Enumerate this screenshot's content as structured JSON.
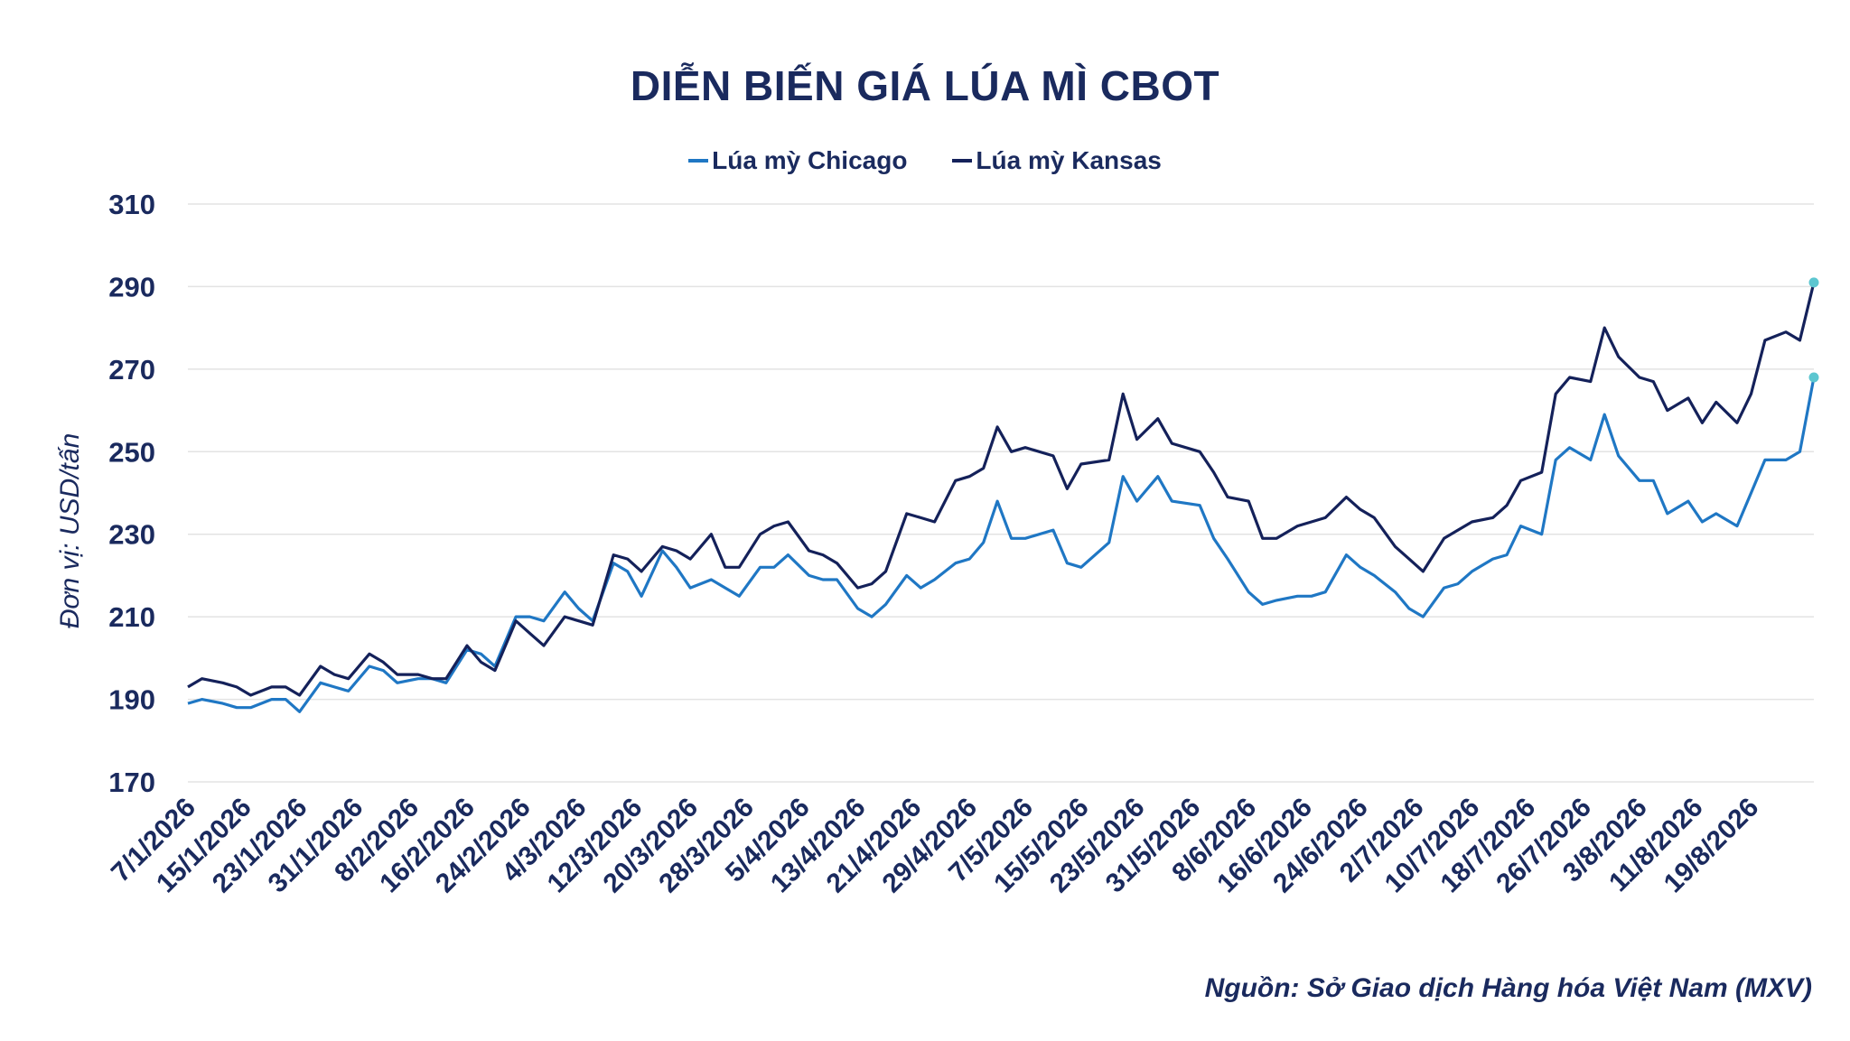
{
  "chart_data": {
    "type": "line",
    "title": "DIỄN BIẾN GIÁ LÚA MÌ CBOT",
    "ylabel": "Đơn vị: USD/tấn",
    "xlabel": "",
    "ylim": [
      170,
      310
    ],
    "yticks": [
      170,
      190,
      210,
      230,
      250,
      270,
      290,
      310
    ],
    "grid": true,
    "legend_position": "top-center",
    "xtick_labels": [
      "7/1/2026",
      "15/1/2026",
      "23/1/2026",
      "31/1/2026",
      "8/2/2026",
      "16/2/2026",
      "24/2/2026",
      "4/3/2026",
      "12/3/2026",
      "20/3/2026",
      "28/3/2026",
      "5/4/2026",
      "13/4/2026",
      "21/4/2026",
      "29/4/2026",
      "7/5/2026",
      "15/5/2026",
      "23/5/2026",
      "31/5/2026",
      "8/6/2026",
      "16/6/2026",
      "24/6/2026",
      "2/7/2026",
      "10/7/2026",
      "18/7/2026",
      "26/7/2026",
      "3/8/2026",
      "11/8/2026",
      "19/8/2026"
    ],
    "x_range": [
      "7/1/2026",
      "28/8/2026"
    ],
    "series": [
      {
        "name": "Lúa mỳ Chicago",
        "color": "#1f77c4",
        "points": [
          [
            "7/1/2026",
            189
          ],
          [
            "9/1/2026",
            190
          ],
          [
            "12/1/2026",
            189
          ],
          [
            "14/1/2026",
            188
          ],
          [
            "16/1/2026",
            188
          ],
          [
            "19/1/2026",
            190
          ],
          [
            "21/1/2026",
            190
          ],
          [
            "23/1/2026",
            187
          ],
          [
            "26/1/2026",
            194
          ],
          [
            "28/1/2026",
            193
          ],
          [
            "30/1/2026",
            192
          ],
          [
            "2/2/2026",
            198
          ],
          [
            "4/2/2026",
            197
          ],
          [
            "6/2/2026",
            194
          ],
          [
            "9/2/2026",
            195
          ],
          [
            "11/2/2026",
            195
          ],
          [
            "13/2/2026",
            194
          ],
          [
            "16/2/2026",
            202
          ],
          [
            "18/2/2026",
            201
          ],
          [
            "20/2/2026",
            198
          ],
          [
            "23/2/2026",
            210
          ],
          [
            "25/2/2026",
            210
          ],
          [
            "27/2/2026",
            209
          ],
          [
            "2/3/2026",
            216
          ],
          [
            "4/3/2026",
            212
          ],
          [
            "6/3/2026",
            209
          ],
          [
            "9/3/2026",
            223
          ],
          [
            "11/3/2026",
            221
          ],
          [
            "13/3/2026",
            215
          ],
          [
            "16/3/2026",
            226
          ],
          [
            "18/3/2026",
            222
          ],
          [
            "20/3/2026",
            217
          ],
          [
            "23/3/2026",
            219
          ],
          [
            "25/3/2026",
            217
          ],
          [
            "27/3/2026",
            215
          ],
          [
            "30/3/2026",
            222
          ],
          [
            "1/4/2026",
            222
          ],
          [
            "3/4/2026",
            225
          ],
          [
            "6/4/2026",
            220
          ],
          [
            "8/4/2026",
            219
          ],
          [
            "10/4/2026",
            219
          ],
          [
            "13/4/2026",
            212
          ],
          [
            "15/4/2026",
            210
          ],
          [
            "17/4/2026",
            213
          ],
          [
            "20/4/2026",
            220
          ],
          [
            "22/4/2026",
            217
          ],
          [
            "24/4/2026",
            219
          ],
          [
            "27/4/2026",
            223
          ],
          [
            "29/4/2026",
            224
          ],
          [
            "1/5/2026",
            228
          ],
          [
            "3/5/2026",
            238
          ],
          [
            "5/5/2026",
            229
          ],
          [
            "7/5/2026",
            229
          ],
          [
            "11/5/2026",
            231
          ],
          [
            "13/5/2026",
            223
          ],
          [
            "15/5/2026",
            222
          ],
          [
            "19/5/2026",
            228
          ],
          [
            "21/5/2026",
            244
          ],
          [
            "23/5/2026",
            238
          ],
          [
            "26/5/2026",
            244
          ],
          [
            "28/5/2026",
            238
          ],
          [
            "1/6/2026",
            237
          ],
          [
            "3/6/2026",
            229
          ],
          [
            "5/6/2026",
            224
          ],
          [
            "8/6/2026",
            216
          ],
          [
            "10/6/2026",
            213
          ],
          [
            "12/6/2026",
            214
          ],
          [
            "15/6/2026",
            215
          ],
          [
            "17/6/2026",
            215
          ],
          [
            "19/6/2026",
            216
          ],
          [
            "22/6/2026",
            225
          ],
          [
            "24/6/2026",
            222
          ],
          [
            "26/6/2026",
            220
          ],
          [
            "29/6/2026",
            216
          ],
          [
            "1/7/2026",
            212
          ],
          [
            "3/7/2026",
            210
          ],
          [
            "6/7/2026",
            217
          ],
          [
            "8/7/2026",
            218
          ],
          [
            "10/7/2026",
            221
          ],
          [
            "13/7/2026",
            224
          ],
          [
            "15/7/2026",
            225
          ],
          [
            "17/7/2026",
            232
          ],
          [
            "20/7/2026",
            230
          ],
          [
            "22/7/2026",
            248
          ],
          [
            "24/7/2026",
            251
          ],
          [
            "27/7/2026",
            248
          ],
          [
            "29/7/2026",
            259
          ],
          [
            "31/7/2026",
            249
          ],
          [
            "3/8/2026",
            243
          ],
          [
            "5/8/2026",
            243
          ],
          [
            "7/8/2026",
            235
          ],
          [
            "10/8/2026",
            238
          ],
          [
            "12/8/2026",
            233
          ],
          [
            "14/8/2026",
            235
          ],
          [
            "17/8/2026",
            232
          ],
          [
            "19/8/2026",
            240
          ],
          [
            "21/8/2026",
            248
          ],
          [
            "24/8/2026",
            248
          ],
          [
            "26/8/2026",
            250
          ],
          [
            "28/8/2026",
            268
          ]
        ]
      },
      {
        "name": "Lúa mỳ Kansas",
        "color": "#14215a",
        "points": [
          [
            "7/1/2026",
            193
          ],
          [
            "9/1/2026",
            195
          ],
          [
            "12/1/2026",
            194
          ],
          [
            "14/1/2026",
            193
          ],
          [
            "16/1/2026",
            191
          ],
          [
            "19/1/2026",
            193
          ],
          [
            "21/1/2026",
            193
          ],
          [
            "23/1/2026",
            191
          ],
          [
            "26/1/2026",
            198
          ],
          [
            "28/1/2026",
            196
          ],
          [
            "30/1/2026",
            195
          ],
          [
            "2/2/2026",
            201
          ],
          [
            "4/2/2026",
            199
          ],
          [
            "6/2/2026",
            196
          ],
          [
            "9/2/2026",
            196
          ],
          [
            "11/2/2026",
            195
          ],
          [
            "13/2/2026",
            195
          ],
          [
            "16/2/2026",
            203
          ],
          [
            "18/2/2026",
            199
          ],
          [
            "20/2/2026",
            197
          ],
          [
            "23/2/2026",
            209
          ],
          [
            "25/2/2026",
            206
          ],
          [
            "27/2/2026",
            203
          ],
          [
            "2/3/2026",
            210
          ],
          [
            "4/3/2026",
            209
          ],
          [
            "6/3/2026",
            208
          ],
          [
            "9/3/2026",
            225
          ],
          [
            "11/3/2026",
            224
          ],
          [
            "13/3/2026",
            221
          ],
          [
            "16/3/2026",
            227
          ],
          [
            "18/3/2026",
            226
          ],
          [
            "20/3/2026",
            224
          ],
          [
            "23/3/2026",
            230
          ],
          [
            "25/3/2026",
            222
          ],
          [
            "27/3/2026",
            222
          ],
          [
            "30/3/2026",
            230
          ],
          [
            "1/4/2026",
            232
          ],
          [
            "3/4/2026",
            233
          ],
          [
            "6/4/2026",
            226
          ],
          [
            "8/4/2026",
            225
          ],
          [
            "10/4/2026",
            223
          ],
          [
            "13/4/2026",
            217
          ],
          [
            "15/4/2026",
            218
          ],
          [
            "17/4/2026",
            221
          ],
          [
            "20/4/2026",
            235
          ],
          [
            "22/4/2026",
            234
          ],
          [
            "24/4/2026",
            233
          ],
          [
            "27/4/2026",
            243
          ],
          [
            "29/4/2026",
            244
          ],
          [
            "1/5/2026",
            246
          ],
          [
            "3/5/2026",
            256
          ],
          [
            "5/5/2026",
            250
          ],
          [
            "7/5/2026",
            251
          ],
          [
            "11/5/2026",
            249
          ],
          [
            "13/5/2026",
            241
          ],
          [
            "15/5/2026",
            247
          ],
          [
            "19/5/2026",
            248
          ],
          [
            "21/5/2026",
            264
          ],
          [
            "23/5/2026",
            253
          ],
          [
            "26/5/2026",
            258
          ],
          [
            "28/5/2026",
            252
          ],
          [
            "1/6/2026",
            250
          ],
          [
            "3/6/2026",
            245
          ],
          [
            "5/6/2026",
            239
          ],
          [
            "8/6/2026",
            238
          ],
          [
            "10/6/2026",
            229
          ],
          [
            "12/6/2026",
            229
          ],
          [
            "15/6/2026",
            232
          ],
          [
            "17/6/2026",
            233
          ],
          [
            "19/6/2026",
            234
          ],
          [
            "22/6/2026",
            239
          ],
          [
            "24/6/2026",
            236
          ],
          [
            "26/6/2026",
            234
          ],
          [
            "29/6/2026",
            227
          ],
          [
            "1/7/2026",
            224
          ],
          [
            "3/7/2026",
            221
          ],
          [
            "6/7/2026",
            229
          ],
          [
            "8/7/2026",
            231
          ],
          [
            "10/7/2026",
            233
          ],
          [
            "13/7/2026",
            234
          ],
          [
            "15/7/2026",
            237
          ],
          [
            "17/7/2026",
            243
          ],
          [
            "20/7/2026",
            245
          ],
          [
            "22/7/2026",
            264
          ],
          [
            "24/7/2026",
            268
          ],
          [
            "27/7/2026",
            267
          ],
          [
            "29/7/2026",
            280
          ],
          [
            "31/7/2026",
            273
          ],
          [
            "3/8/2026",
            268
          ],
          [
            "5/8/2026",
            267
          ],
          [
            "7/8/2026",
            260
          ],
          [
            "10/8/2026",
            263
          ],
          [
            "12/8/2026",
            257
          ],
          [
            "14/8/2026",
            262
          ],
          [
            "17/8/2026",
            257
          ],
          [
            "19/8/2026",
            264
          ],
          [
            "21/8/2026",
            277
          ],
          [
            "24/8/2026",
            279
          ],
          [
            "26/8/2026",
            277
          ],
          [
            "28/8/2026",
            291
          ]
        ]
      }
    ],
    "end_marker_color": "#5cc6d0"
  },
  "source_note": "Nguồn: Sở Giao dịch Hàng hóa Việt Nam (MXV)"
}
